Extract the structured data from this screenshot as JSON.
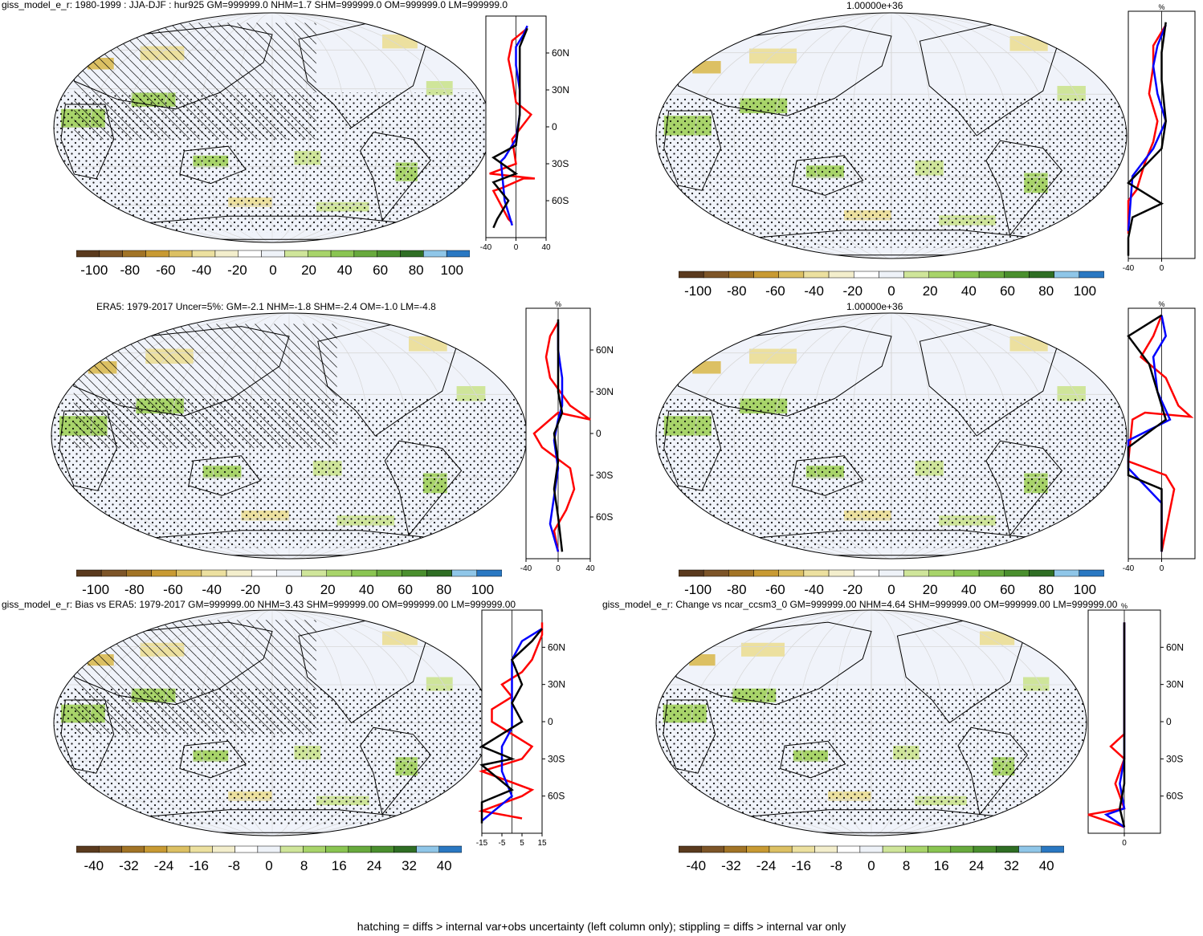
{
  "panels": [
    {
      "id": "p1",
      "title": "giss_model_e_r: 1980-1999 : JJA-DJF : hur925 GM=999999.0 NHM=1.7 SHM=999999.0 OM=999999.0 LM=999999.0",
      "colorbar": {
        "labels": [
          "-100",
          "-80",
          "-60",
          "-40",
          "-20",
          "0",
          "20",
          "40",
          "60",
          "80",
          "100"
        ]
      },
      "zonal": {
        "top_label": "",
        "xticks": [
          "-40",
          "0",
          "40"
        ],
        "lat_labels": [
          "60N",
          "30N",
          "0",
          "30S",
          "60S"
        ]
      }
    },
    {
      "id": "p2",
      "title": "1.00000e+36",
      "colorbar": {
        "labels": [
          "-100",
          "-80",
          "-60",
          "-40",
          "-20",
          "0",
          "20",
          "40",
          "60",
          "80",
          "100"
        ]
      },
      "zonal": {
        "top_label": "%",
        "xticks": [
          "-40",
          "0"
        ],
        "lat_labels": []
      }
    },
    {
      "id": "p3",
      "title": "ERA5: 1979-2017 Uncer=5%: GM=-2.1 NHM=-1.8 SHM=-2.4 OM=-1.0 LM=-4.8",
      "colorbar": {
        "labels": [
          "-100",
          "-80",
          "-60",
          "-40",
          "-20",
          "0",
          "20",
          "40",
          "60",
          "80",
          "100"
        ]
      },
      "zonal": {
        "top_label": "%",
        "xticks": [
          "-40",
          "0",
          "40"
        ],
        "lat_labels": [
          "60N",
          "30N",
          "0",
          "30S",
          "60S"
        ]
      }
    },
    {
      "id": "p4",
      "title": "1.00000e+36",
      "colorbar": {
        "labels": [
          "-100",
          "-80",
          "-60",
          "-40",
          "-20",
          "0",
          "20",
          "40",
          "60",
          "80",
          "100"
        ]
      },
      "zonal": {
        "top_label": "%",
        "xticks": [
          "-40",
          "0"
        ],
        "lat_labels": []
      }
    },
    {
      "id": "p5",
      "title": "giss_model_e_r: Bias vs ERA5: 1979-2017 GM=999999.00 NHM=3.43 SHM=999999.00 OM=999999.00 LM=999999.00",
      "colorbar": {
        "labels": [
          "-40",
          "-32",
          "-24",
          "-16",
          "-8",
          "0",
          "8",
          "16",
          "24",
          "32",
          "40"
        ]
      },
      "zonal": {
        "top_label": "",
        "xticks": [
          "-15",
          "-5",
          "5",
          "15"
        ],
        "lat_labels": [
          "60N",
          "30N",
          "0",
          "30S",
          "60S"
        ]
      }
    },
    {
      "id": "p6",
      "title": "giss_model_e_r: Change vs ncar_ccsm3_0 GM=999999.00 NHM=4.64 SHM=999999.00 OM=999999.00 LM=999999.00",
      "colorbar": {
        "labels": [
          "-40",
          "-32",
          "-24",
          "-16",
          "-8",
          "0",
          "8",
          "16",
          "24",
          "32",
          "40"
        ]
      },
      "zonal": {
        "top_label": "%",
        "xticks": [
          "0"
        ],
        "lat_labels": [
          "60N",
          "30N",
          "0",
          "30S",
          "60S"
        ]
      }
    }
  ],
  "colorbar_colors": [
    "#5a3a1e",
    "#7d5528",
    "#a27426",
    "#c89a33",
    "#dcc063",
    "#ece09f",
    "#f3eecc",
    "#ffffff",
    "#eef2f8",
    "#cfe59a",
    "#a8d46a",
    "#8ac552",
    "#68aa3d",
    "#4a8f2e",
    "#2f6e24",
    "#8fc6e8",
    "#2a78c2"
  ],
  "footer": "hatching = diffs > internal var+obs uncertainty (left column only); stippling = diffs > internal var only",
  "chart_data": [
    {
      "type": "line",
      "title": "giss_model_e_r: 1980-1999 : JJA-DJF : hur925 GM=999999.0 NHM=1.7 SHM=999999.0 OM=999999.0 LM=999999.0",
      "xlabel": "",
      "ylabel": "",
      "xlim": [
        -40,
        40
      ],
      "ylim": [
        -90,
        90
      ],
      "series": [
        {
          "color": "#ff0000",
          "points": [
            [
              -5,
              -78
            ],
            [
              -10,
              -75
            ],
            [
              -30,
              -52
            ],
            [
              -20,
              -50
            ],
            [
              10,
              -42
            ],
            [
              25,
              -42
            ],
            [
              -35,
              -38
            ],
            [
              0,
              -30
            ],
            [
              -5,
              -10
            ],
            [
              20,
              10
            ],
            [
              0,
              20
            ],
            [
              -5,
              40
            ],
            [
              -10,
              55
            ],
            [
              -5,
              70
            ],
            [
              15,
              80
            ]
          ]
        },
        {
          "color": "#0000ff",
          "points": [
            [
              -5,
              -80
            ],
            [
              -15,
              -60
            ],
            [
              -20,
              -28
            ],
            [
              -15,
              -25
            ],
            [
              0,
              -10
            ],
            [
              5,
              10
            ],
            [
              5,
              30
            ],
            [
              0,
              50
            ],
            [
              0,
              65
            ],
            [
              10,
              75
            ],
            [
              15,
              82
            ]
          ]
        },
        {
          "color": "#000000",
          "points": [
            [
              -30,
              -82
            ],
            [
              -25,
              -75
            ],
            [
              -10,
              -60
            ],
            [
              -30,
              -45
            ],
            [
              0,
              -38
            ],
            [
              -30,
              -25
            ],
            [
              0,
              -15
            ],
            [
              5,
              10
            ],
            [
              5,
              30
            ],
            [
              5,
              50
            ],
            [
              5,
              65
            ],
            [
              15,
              80
            ]
          ]
        }
      ]
    },
    {
      "type": "line",
      "title": "1.00000e+36",
      "xlabel": "",
      "ylabel": "",
      "xlim": [
        -40,
        40
      ],
      "ylim": [
        -90,
        90
      ],
      "series": [
        {
          "color": "#ff0000",
          "points": [
            [
              -40,
              -72
            ],
            [
              -40,
              -48
            ],
            [
              -30,
              -40
            ],
            [
              -20,
              -20
            ],
            [
              -10,
              -5
            ],
            [
              -5,
              10
            ],
            [
              -15,
              30
            ],
            [
              -10,
              50
            ],
            [
              -10,
              65
            ],
            [
              5,
              80
            ]
          ]
        },
        {
          "color": "#0000ff",
          "points": [
            [
              -40,
              -70
            ],
            [
              -35,
              -30
            ],
            [
              -10,
              -10
            ],
            [
              5,
              10
            ],
            [
              -5,
              30
            ],
            [
              -10,
              50
            ],
            [
              -5,
              65
            ],
            [
              5,
              80
            ]
          ]
        },
        {
          "color": "#000000",
          "points": [
            [
              -40,
              -88
            ],
            [
              -40,
              -75
            ],
            [
              -35,
              -60
            ],
            [
              0,
              -50
            ],
            [
              -40,
              -35
            ],
            [
              0,
              -10
            ],
            [
              5,
              10
            ],
            [
              0,
              40
            ],
            [
              0,
              60
            ],
            [
              5,
              82
            ]
          ]
        }
      ]
    },
    {
      "type": "line",
      "title": "ERA5: 1979-2017 Uncer=5%: GM=-2.1 NHM=-1.8 SHM=-2.4 OM=-1.0 LM=-4.8",
      "xlabel": "",
      "ylabel": "%",
      "xlim": [
        -40,
        40
      ],
      "ylim": [
        -90,
        90
      ],
      "series": [
        {
          "color": "#ff0000",
          "points": [
            [
              0,
              -85
            ],
            [
              -5,
              -70
            ],
            [
              10,
              -55
            ],
            [
              20,
              -40
            ],
            [
              15,
              -25
            ],
            [
              -20,
              -10
            ],
            [
              -30,
              0
            ],
            [
              0,
              15
            ],
            [
              40,
              10
            ],
            [
              15,
              20
            ],
            [
              -10,
              40
            ],
            [
              -15,
              55
            ],
            [
              -10,
              70
            ],
            [
              0,
              80
            ]
          ]
        },
        {
          "color": "#0000ff",
          "points": [
            [
              0,
              -85
            ],
            [
              -10,
              -65
            ],
            [
              -5,
              -45
            ],
            [
              0,
              -25
            ],
            [
              -5,
              -5
            ],
            [
              0,
              10
            ],
            [
              5,
              20
            ],
            [
              5,
              40
            ],
            [
              0,
              60
            ],
            [
              0,
              80
            ]
          ]
        },
        {
          "color": "#000000",
          "points": [
            [
              5,
              -85
            ],
            [
              0,
              -60
            ],
            [
              -5,
              -40
            ],
            [
              0,
              -20
            ],
            [
              -5,
              0
            ],
            [
              5,
              15
            ],
            [
              0,
              30
            ],
            [
              0,
              50
            ],
            [
              0,
              70
            ],
            [
              0,
              82
            ]
          ]
        }
      ]
    },
    {
      "type": "line",
      "title": "1.00000e+36",
      "xlabel": "",
      "ylabel": "%",
      "xlim": [
        -40,
        40
      ],
      "ylim": [
        -90,
        90
      ],
      "series": [
        {
          "color": "#ff0000",
          "points": [
            [
              0,
              -85
            ],
            [
              5,
              -70
            ],
            [
              10,
              -55
            ],
            [
              15,
              -40
            ],
            [
              5,
              -30
            ],
            [
              -40,
              -20
            ],
            [
              -35,
              10
            ],
            [
              -20,
              15
            ],
            [
              35,
              12
            ],
            [
              20,
              20
            ],
            [
              5,
              40
            ],
            [
              -25,
              55
            ],
            [
              -10,
              70
            ],
            [
              0,
              85
            ]
          ]
        },
        {
          "color": "#0000ff",
          "points": [
            [
              0,
              -85
            ],
            [
              0,
              -50
            ],
            [
              -40,
              -25
            ],
            [
              -40,
              -5
            ],
            [
              10,
              10
            ],
            [
              -5,
              30
            ],
            [
              -10,
              55
            ],
            [
              5,
              70
            ],
            [
              0,
              85
            ]
          ]
        },
        {
          "color": "#000000",
          "points": [
            [
              0,
              -85
            ],
            [
              0,
              -40
            ],
            [
              -40,
              -30
            ],
            [
              -40,
              -10
            ],
            [
              5,
              10
            ],
            [
              -5,
              30
            ],
            [
              -15,
              50
            ],
            [
              -40,
              70
            ],
            [
              0,
              85
            ]
          ]
        }
      ]
    },
    {
      "type": "line",
      "title": "giss_model_e_r: Bias vs ERA5: 1979-2017 GM=999999.00 NHM=3.43 SHM=999999.00 OM=999999.00 LM=999999.00",
      "xlabel": "",
      "ylabel": "",
      "xlim": [
        -15,
        15
      ],
      "ylim": [
        -90,
        90
      ],
      "series": [
        {
          "color": "#ff0000",
          "points": [
            [
              5,
              -78
            ],
            [
              -15,
              -72
            ],
            [
              5,
              -60
            ],
            [
              10,
              -55
            ],
            [
              -15,
              -40
            ],
            [
              5,
              -30
            ],
            [
              10,
              -20
            ],
            [
              -10,
              0
            ],
            [
              -10,
              10
            ],
            [
              0,
              20
            ],
            [
              -5,
              30
            ],
            [
              5,
              40
            ],
            [
              10,
              50
            ],
            [
              15,
              70
            ],
            [
              15,
              80
            ]
          ]
        },
        {
          "color": "#0000ff",
          "points": [
            [
              -15,
              -80
            ],
            [
              0,
              -60
            ],
            [
              -5,
              -40
            ],
            [
              -5,
              -20
            ],
            [
              0,
              -5
            ],
            [
              0,
              10
            ],
            [
              0,
              30
            ],
            [
              0,
              50
            ],
            [
              5,
              65
            ],
            [
              15,
              75
            ]
          ]
        },
        {
          "color": "#000000",
          "points": [
            [
              -15,
              -82
            ],
            [
              -15,
              -65
            ],
            [
              0,
              -55
            ],
            [
              -15,
              -35
            ],
            [
              0,
              -30
            ],
            [
              -15,
              -20
            ],
            [
              5,
              0
            ],
            [
              0,
              15
            ],
            [
              5,
              30
            ],
            [
              0,
              50
            ],
            [
              10,
              65
            ],
            [
              15,
              75
            ]
          ]
        }
      ]
    },
    {
      "type": "line",
      "title": "giss_model_e_r: Change vs ncar_ccsm3_0 GM=999999.00 NHM=4.64 SHM=999999.00 OM=999999.00 LM=999999.00",
      "xlabel": "",
      "ylabel": "%",
      "xlim": [
        -40,
        40
      ],
      "ylim": [
        -90,
        90
      ],
      "series": [
        {
          "color": "#ff0000",
          "points": [
            [
              0,
              -85
            ],
            [
              -40,
              -75
            ],
            [
              0,
              -70
            ],
            [
              -10,
              -50
            ],
            [
              0,
              -30
            ],
            [
              -15,
              -20
            ],
            [
              0,
              -10
            ],
            [
              0,
              80
            ]
          ]
        },
        {
          "color": "#0000ff",
          "points": [
            [
              0,
              -85
            ],
            [
              -20,
              -75
            ],
            [
              0,
              -70
            ],
            [
              -5,
              -50
            ],
            [
              0,
              -30
            ],
            [
              0,
              80
            ]
          ]
        },
        {
          "color": "#000000",
          "points": [
            [
              0,
              -85
            ],
            [
              -5,
              -70
            ],
            [
              0,
              -50
            ],
            [
              0,
              -30
            ],
            [
              0,
              80
            ]
          ]
        }
      ]
    }
  ]
}
